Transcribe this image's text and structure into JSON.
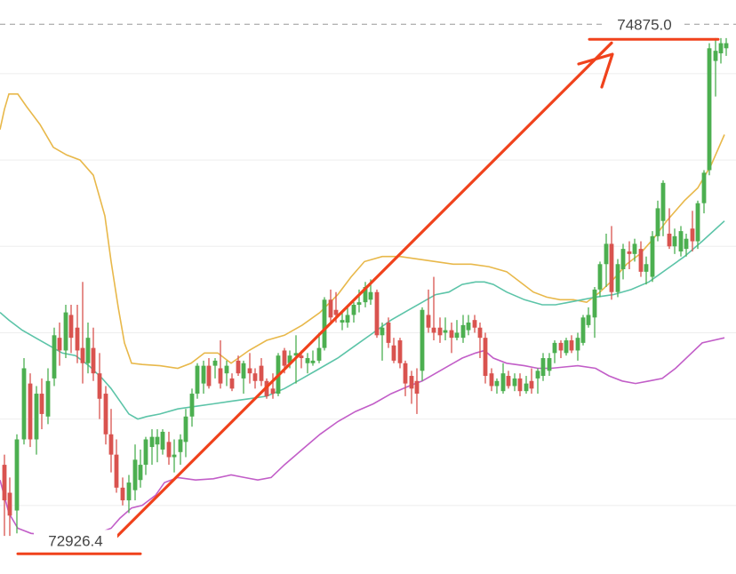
{
  "chart_data": {
    "type": "candlestick",
    "grid": true,
    "ylim": [
      72770,
      75030
    ],
    "colors": {
      "up": "#4caf50",
      "down": "#d9534f",
      "upper_band": "#e8b84a",
      "middle_band": "#5cc4a8",
      "lower_band": "#c25ec8",
      "annotation": "#f0421c",
      "grid": "#eeeeee",
      "dashed": "#999999"
    },
    "annotations": {
      "high_label": "74875.0",
      "high_value": 74875.0,
      "low_label": "72926.4",
      "low_value": 72926.4
    },
    "upper_band": [
      [
        0,
        74520
      ],
      [
        5,
        74600
      ],
      [
        10,
        74660
      ],
      [
        20,
        74660
      ],
      [
        30,
        74610
      ],
      [
        45,
        74540
      ],
      [
        60,
        74450
      ],
      [
        75,
        74420
      ],
      [
        90,
        74400
      ],
      [
        105,
        74340
      ],
      [
        118,
        74180
      ],
      [
        125,
        74000
      ],
      [
        133,
        73820
      ],
      [
        140,
        73680
      ],
      [
        148,
        73600
      ],
      [
        160,
        73595
      ],
      [
        180,
        73590
      ],
      [
        200,
        73580
      ],
      [
        215,
        73600
      ],
      [
        230,
        73640
      ],
      [
        245,
        73640
      ],
      [
        260,
        73600
      ],
      [
        280,
        73650
      ],
      [
        300,
        73690
      ],
      [
        320,
        73710
      ],
      [
        340,
        73750
      ],
      [
        360,
        73800
      ],
      [
        380,
        73870
      ],
      [
        395,
        73940
      ],
      [
        410,
        74000
      ],
      [
        430,
        74020
      ],
      [
        450,
        74020
      ],
      [
        470,
        74010
      ],
      [
        490,
        74000
      ],
      [
        510,
        73990
      ],
      [
        530,
        73990
      ],
      [
        550,
        73980
      ],
      [
        570,
        73960
      ],
      [
        585,
        73920
      ],
      [
        600,
        73880
      ],
      [
        615,
        73860
      ],
      [
        630,
        73850
      ],
      [
        645,
        73850
      ],
      [
        660,
        73840
      ],
      [
        675,
        73880
      ],
      [
        690,
        73930
      ],
      [
        705,
        73990
      ],
      [
        720,
        74030
      ],
      [
        735,
        74090
      ],
      [
        750,
        74160
      ],
      [
        770,
        74240
      ],
      [
        785,
        74290
      ],
      [
        800,
        74380
      ],
      [
        815,
        74500
      ]
    ],
    "middle_band": [
      [
        0,
        73800
      ],
      [
        10,
        73770
      ],
      [
        25,
        73730
      ],
      [
        40,
        73700
      ],
      [
        55,
        73670
      ],
      [
        70,
        73640
      ],
      [
        85,
        73630
      ],
      [
        100,
        73590
      ],
      [
        115,
        73540
      ],
      [
        125,
        73500
      ],
      [
        135,
        73450
      ],
      [
        145,
        73400
      ],
      [
        155,
        73380
      ],
      [
        165,
        73390
      ],
      [
        180,
        73400
      ],
      [
        200,
        73420
      ],
      [
        220,
        73430
      ],
      [
        240,
        73440
      ],
      [
        260,
        73450
      ],
      [
        280,
        73460
      ],
      [
        300,
        73470
      ],
      [
        320,
        73500
      ],
      [
        340,
        73540
      ],
      [
        360,
        73580
      ],
      [
        380,
        73620
      ],
      [
        400,
        73670
      ],
      [
        420,
        73720
      ],
      [
        440,
        73770
      ],
      [
        460,
        73810
      ],
      [
        475,
        73840
      ],
      [
        490,
        73870
      ],
      [
        505,
        73880
      ],
      [
        520,
        73910
      ],
      [
        535,
        73920
      ],
      [
        545,
        73920
      ],
      [
        555,
        73910
      ],
      [
        570,
        73880
      ],
      [
        590,
        73850
      ],
      [
        610,
        73830
      ],
      [
        625,
        73830
      ],
      [
        640,
        73840
      ],
      [
        655,
        73850
      ],
      [
        670,
        73860
      ],
      [
        690,
        73870
      ],
      [
        710,
        73890
      ],
      [
        730,
        73920
      ],
      [
        750,
        73970
      ],
      [
        770,
        74020
      ],
      [
        790,
        74080
      ],
      [
        815,
        74160
      ]
    ],
    "lower_band": [
      [
        0,
        73140
      ],
      [
        10,
        73010
      ],
      [
        20,
        72950
      ],
      [
        35,
        72930
      ],
      [
        50,
        72925
      ],
      [
        65,
        72925
      ],
      [
        80,
        72925
      ],
      [
        95,
        72925
      ],
      [
        110,
        72930
      ],
      [
        125,
        72950
      ],
      [
        135,
        72990
      ],
      [
        148,
        73030
      ],
      [
        160,
        73040
      ],
      [
        175,
        73080
      ],
      [
        185,
        73130
      ],
      [
        200,
        73150
      ],
      [
        220,
        73140
      ],
      [
        240,
        73145
      ],
      [
        260,
        73160
      ],
      [
        275,
        73150
      ],
      [
        290,
        73140
      ],
      [
        305,
        73150
      ],
      [
        320,
        73200
      ],
      [
        340,
        73260
      ],
      [
        360,
        73320
      ],
      [
        380,
        73370
      ],
      [
        400,
        73410
      ],
      [
        420,
        73440
      ],
      [
        440,
        73480
      ],
      [
        460,
        73510
      ],
      [
        475,
        73530
      ],
      [
        490,
        73560
      ],
      [
        505,
        73590
      ],
      [
        520,
        73620
      ],
      [
        535,
        73640
      ],
      [
        545,
        73650
      ],
      [
        555,
        73620
      ],
      [
        570,
        73600
      ],
      [
        590,
        73590
      ],
      [
        605,
        73580
      ],
      [
        620,
        73580
      ],
      [
        635,
        73585
      ],
      [
        650,
        73590
      ],
      [
        670,
        73580
      ],
      [
        685,
        73550
      ],
      [
        700,
        73530
      ],
      [
        715,
        73520
      ],
      [
        730,
        73530
      ],
      [
        745,
        73540
      ],
      [
        760,
        73580
      ],
      [
        775,
        73630
      ],
      [
        790,
        73680
      ],
      [
        815,
        73700
      ]
    ],
    "candles": [
      [
        5,
        73200,
        73240,
        72920,
        73060
      ],
      [
        11,
        73090,
        73150,
        72920,
        73000
      ],
      [
        19,
        73020,
        73320,
        72930,
        73300
      ],
      [
        27,
        73300,
        73620,
        73280,
        73580
      ],
      [
        34,
        73520,
        73560,
        73270,
        73300
      ],
      [
        41,
        73300,
        73510,
        73240,
        73480
      ],
      [
        47,
        73480,
        73540,
        73340,
        73400
      ],
      [
        54,
        73390,
        73580,
        73360,
        73530
      ],
      [
        61,
        73540,
        73740,
        73510,
        73710
      ],
      [
        67,
        73700,
        73760,
        73590,
        73650
      ],
      [
        74,
        73650,
        73830,
        73620,
        73800
      ],
      [
        80,
        73790,
        73830,
        73640,
        73700
      ],
      [
        87,
        73740,
        73830,
        73600,
        73650
      ],
      [
        93,
        73660,
        73920,
        73520,
        73600
      ],
      [
        99,
        73600,
        73760,
        73560,
        73700
      ],
      [
        105,
        73660,
        73740,
        73530,
        73560
      ],
      [
        112,
        73560,
        73640,
        73380,
        73460
      ],
      [
        119,
        73480,
        73510,
        73280,
        73320
      ],
      [
        125,
        73320,
        73420,
        73170,
        73240
      ],
      [
        131,
        73240,
        73300,
        73090,
        73110
      ],
      [
        138,
        73110,
        73150,
        73040,
        73060
      ],
      [
        145,
        73060,
        73160,
        73010,
        73130
      ],
      [
        152,
        73100,
        73280,
        73060,
        73220
      ],
      [
        158,
        73140,
        73260,
        73110,
        73200
      ],
      [
        164,
        73200,
        73310,
        73160,
        73300
      ],
      [
        171,
        73270,
        73340,
        73200,
        73310
      ],
      [
        177,
        73280,
        73340,
        73210,
        73310
      ],
      [
        183,
        73260,
        73340,
        73240,
        73330
      ],
      [
        190,
        73290,
        73330,
        73200,
        73230
      ],
      [
        196,
        73230,
        73300,
        73170,
        73240
      ],
      [
        203,
        73250,
        73320,
        73200,
        73300
      ],
      [
        209,
        73290,
        73420,
        73230,
        73390
      ],
      [
        216,
        73390,
        73500,
        73350,
        73480
      ],
      [
        222,
        73480,
        73600,
        73460,
        73590
      ],
      [
        229,
        73520,
        73610,
        73480,
        73590
      ],
      [
        235,
        73590,
        73620,
        73500,
        73510
      ],
      [
        242,
        73590,
        73620,
        73540,
        73610
      ],
      [
        248,
        73580,
        73690,
        73500,
        73520
      ],
      [
        255,
        73560,
        73610,
        73510,
        73590
      ],
      [
        261,
        73540,
        73560,
        73490,
        73500
      ],
      [
        268,
        73610,
        73630,
        73550,
        73560
      ],
      [
        274,
        73540,
        73610,
        73480,
        73600
      ],
      [
        281,
        73580,
        73640,
        73520,
        73560
      ],
      [
        287,
        73560,
        73580,
        73500,
        73530
      ],
      [
        294,
        73590,
        73620,
        73510,
        73530
      ],
      [
        300,
        73530,
        73540,
        73460,
        73470
      ],
      [
        307,
        73500,
        73560,
        73460,
        73480
      ],
      [
        313,
        73480,
        73640,
        73470,
        73630
      ],
      [
        320,
        73650,
        73660,
        73560,
        73590
      ],
      [
        326,
        73600,
        73650,
        73580,
        73630
      ],
      [
        333,
        73630,
        73710,
        73520,
        73640
      ],
      [
        339,
        73630,
        73650,
        73580,
        73620
      ],
      [
        346,
        73600,
        73640,
        73560,
        73620
      ],
      [
        352,
        73600,
        73650,
        73590,
        73610
      ],
      [
        359,
        73610,
        73720,
        73600,
        73660
      ],
      [
        365,
        73660,
        73860,
        73650,
        73850
      ],
      [
        372,
        73850,
        73890,
        73760,
        73780
      ],
      [
        378,
        73810,
        73880,
        73760,
        73790
      ],
      [
        385,
        73760,
        73800,
        73730,
        73770
      ],
      [
        391,
        73760,
        73820,
        73740,
        73790
      ],
      [
        398,
        73790,
        73840,
        73760,
        73830
      ],
      [
        404,
        73830,
        73890,
        73800,
        73840
      ],
      [
        411,
        73840,
        73920,
        73820,
        73900
      ],
      [
        417,
        73850,
        73930,
        73830,
        73880
      ],
      [
        424,
        73880,
        73890,
        73700,
        73710
      ],
      [
        430,
        73710,
        73760,
        73610,
        73740
      ],
      [
        437,
        73760,
        73780,
        73660,
        73680
      ],
      [
        443,
        73670,
        73700,
        73600,
        73610
      ],
      [
        450,
        73690,
        73700,
        73580,
        73600
      ],
      [
        456,
        73600,
        73610,
        73470,
        73520
      ],
      [
        463,
        73550,
        73570,
        73440,
        73500
      ],
      [
        469,
        73530,
        73580,
        73400,
        73480
      ],
      [
        475,
        73570,
        73820,
        73530,
        73810
      ],
      [
        482,
        73790,
        73890,
        73720,
        73740
      ],
      [
        488,
        73740,
        73940,
        73690,
        73720
      ],
      [
        495,
        73740,
        73780,
        73680,
        73710
      ],
      [
        501,
        73720,
        73780,
        73690,
        73730
      ],
      [
        508,
        73730,
        73760,
        73640,
        73700
      ],
      [
        514,
        73700,
        73770,
        73690,
        73720
      ],
      [
        521,
        73700,
        73790,
        73680,
        73750
      ],
      [
        527,
        73730,
        73790,
        73710,
        73760
      ],
      [
        534,
        73770,
        73790,
        73720,
        73740
      ],
      [
        540,
        73740,
        73760,
        73620,
        73700
      ],
      [
        546,
        73700,
        73720,
        73520,
        73550
      ],
      [
        553,
        73560,
        73580,
        73490,
        73510
      ],
      [
        559,
        73510,
        73540,
        73480,
        73530
      ],
      [
        566,
        73490,
        73600,
        73480,
        73560
      ],
      [
        572,
        73550,
        73570,
        73500,
        73510
      ],
      [
        579,
        73510,
        73560,
        73490,
        73540
      ],
      [
        585,
        73540,
        73560,
        73470,
        73490
      ],
      [
        592,
        73490,
        73550,
        73480,
        73520
      ],
      [
        598,
        73530,
        73580,
        73480,
        73500
      ],
      [
        605,
        73540,
        73580,
        73480,
        73570
      ],
      [
        611,
        73550,
        73640,
        73530,
        73620
      ],
      [
        618,
        73570,
        73640,
        73550,
        73620
      ],
      [
        624,
        73640,
        73690,
        73600,
        73680
      ],
      [
        631,
        73680,
        73690,
        73620,
        73650
      ],
      [
        637,
        73640,
        73700,
        73630,
        73690
      ],
      [
        643,
        73690,
        73710,
        73640,
        73650
      ],
      [
        650,
        73650,
        73720,
        73610,
        73700
      ],
      [
        656,
        73680,
        73790,
        73670,
        73780
      ],
      [
        662,
        73750,
        73820,
        73740,
        73790
      ],
      [
        669,
        73780,
        73900,
        73700,
        73890
      ],
      [
        675,
        73890,
        74000,
        73860,
        73990
      ],
      [
        682,
        73990,
        74110,
        73900,
        74070
      ],
      [
        688,
        74070,
        74140,
        73850,
        73880
      ],
      [
        695,
        73880,
        74010,
        73860,
        73990
      ],
      [
        701,
        73970,
        74070,
        73930,
        74050
      ],
      [
        708,
        74040,
        74080,
        73970,
        74030
      ],
      [
        714,
        74030,
        74090,
        74000,
        74070
      ],
      [
        721,
        74050,
        74080,
        73940,
        73960
      ],
      [
        727,
        73960,
        74020,
        73910,
        73990
      ],
      [
        734,
        73940,
        74120,
        73920,
        74100
      ],
      [
        740,
        74100,
        74240,
        74080,
        74210
      ],
      [
        746,
        74160,
        74320,
        74100,
        74310
      ],
      [
        753,
        74110,
        74210,
        74050,
        74060
      ],
      [
        759,
        74060,
        74130,
        74030,
        74100
      ],
      [
        766,
        74040,
        74140,
        74020,
        74120
      ],
      [
        772,
        74050,
        74110,
        74020,
        74090
      ],
      [
        779,
        74130,
        74200,
        74040,
        74080
      ],
      [
        785,
        74080,
        74240,
        74050,
        74230
      ],
      [
        792,
        74230,
        74360,
        74190,
        74350
      ],
      [
        798,
        74360,
        74860,
        74340,
        74840
      ],
      [
        805,
        74790,
        74880,
        74650,
        74830
      ],
      [
        811,
        74820,
        74880,
        74780,
        74860
      ],
      [
        817,
        74840,
        74880,
        74810,
        74860
      ]
    ]
  }
}
